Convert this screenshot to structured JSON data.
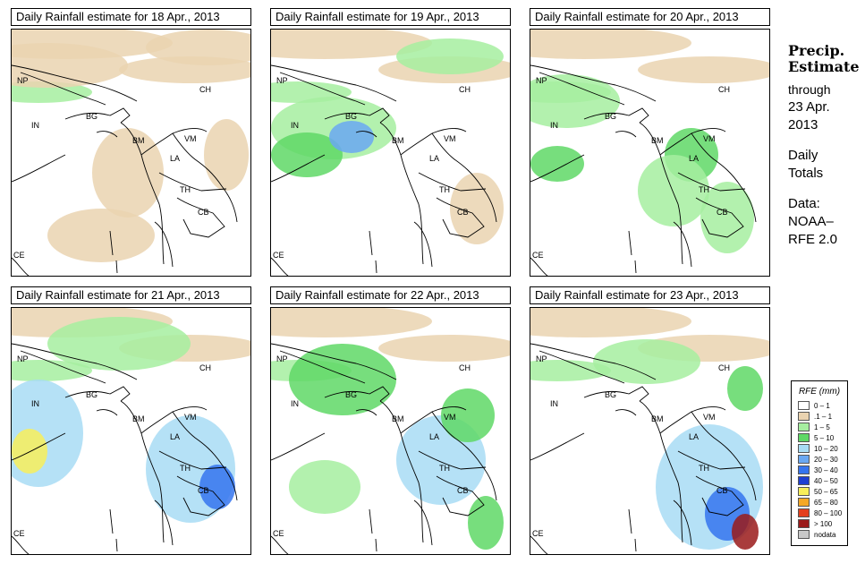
{
  "panels": [
    {
      "title": "Daily Rainfall estimate for  18 Apr., 2013",
      "wet": 1
    },
    {
      "title": "Daily Rainfall estimate for  19 Apr., 2013",
      "wet": 2
    },
    {
      "title": "Daily Rainfall estimate for  20 Apr., 2013",
      "wet": 1
    },
    {
      "title": "Daily Rainfall estimate for  21 Apr., 2013",
      "wet": 3
    },
    {
      "title": "Daily Rainfall estimate for  22 Apr., 2013",
      "wet": 2
    },
    {
      "title": "Daily Rainfall estimate for  23 Apr., 2013",
      "wet": 2
    }
  ],
  "country_labels": [
    "NP",
    "IN",
    "BG",
    "BM",
    "CH",
    "VM",
    "LA",
    "TH",
    "CB",
    "CE"
  ],
  "side": {
    "title_line1": "Precip.",
    "title_line2": "Estimate",
    "through": "through",
    "date_line1": "23 Apr.",
    "date_line2": "2013",
    "daily": "Daily",
    "totals": "Totals",
    "data_label": "Data:",
    "source1": "NOAA–",
    "source2": "RFE 2.0"
  },
  "legend": {
    "title": "RFE (mm)",
    "items": [
      {
        "label": "0 – 1",
        "color": "#ffffff"
      },
      {
        "label": ".1 – 1",
        "color": "#ead3b0"
      },
      {
        "label": "1 – 5",
        "color": "#a6eea0"
      },
      {
        "label": "5 – 10",
        "color": "#5fd866"
      },
      {
        "label": "10 – 20",
        "color": "#a8dcf4"
      },
      {
        "label": "20 – 30",
        "color": "#6aa8f2"
      },
      {
        "label": "30 – 40",
        "color": "#3574ee"
      },
      {
        "label": "40 – 50",
        "color": "#1f3fd2"
      },
      {
        "label": "50 – 65",
        "color": "#f8ee5a"
      },
      {
        "label": "65 – 80",
        "color": "#f5a826"
      },
      {
        "label": "80 – 100",
        "color": "#e3401e"
      },
      {
        "label": "> 100",
        "color": "#9a1a1a"
      },
      {
        "label": "nodata",
        "color": "#c8c8c8"
      }
    ]
  }
}
